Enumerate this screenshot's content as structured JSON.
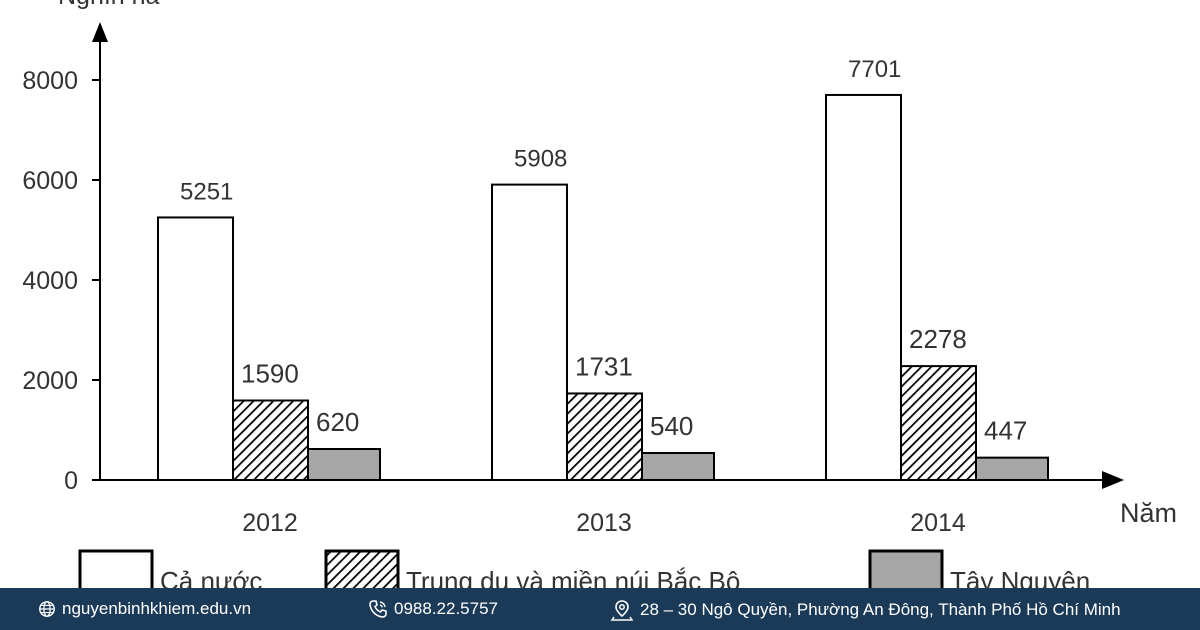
{
  "chart_data": {
    "type": "bar",
    "ylabel": "Nghìn ha",
    "xlabel": "Năm",
    "ylim": [
      0,
      8000
    ],
    "yticks": [
      0,
      2000,
      4000,
      6000,
      8000
    ],
    "categories": [
      "2012",
      "2013",
      "2014"
    ],
    "series": [
      {
        "name": "Cả nước",
        "values": [
          5251,
          5908,
          7701
        ],
        "pattern": "white"
      },
      {
        "name": "Trung du và miền núi Bắc Bộ",
        "values": [
          1590,
          1731,
          2278
        ],
        "pattern": "hatch"
      },
      {
        "name": "Tây Nguyên",
        "values": [
          620,
          540,
          447
        ],
        "pattern": "gray"
      }
    ],
    "grid": false,
    "legend_position": "bottom"
  },
  "footer": {
    "website": "nguyenbinhkhiem.edu.vn",
    "phone": "0988.22.5757",
    "address": "28 – 30 Ngô Quyền, Phường An Đông, Thành Phố Hồ Chí Minh"
  },
  "colors": {
    "footer_bg": "#1b3a57",
    "bar_gray": "#a6a6a6",
    "stroke": "#000000"
  }
}
